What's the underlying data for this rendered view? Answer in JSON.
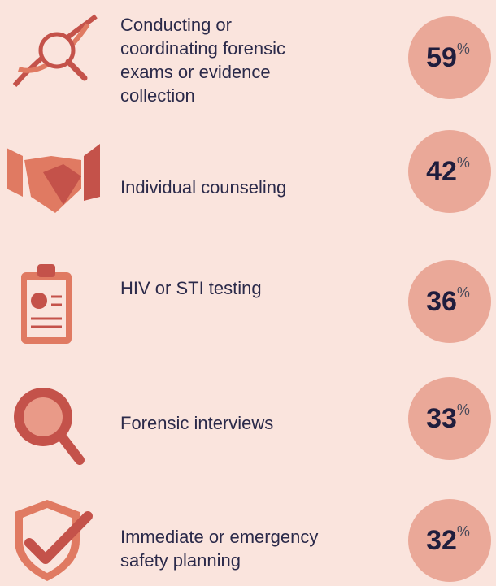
{
  "unit": "%",
  "items": [
    {
      "lines": [
        "Conducting or",
        "coordinating forensic",
        "exams or evidence",
        "collection"
      ],
      "value": 59
    },
    {
      "lines": [
        "Individual counseling"
      ],
      "value": 42
    },
    {
      "lines": [
        "HIV or STI testing"
      ],
      "value": 36
    },
    {
      "lines": [
        "Forensic interviews"
      ],
      "value": 33
    },
    {
      "lines": [
        "Immediate or emergency",
        "safety planning"
      ],
      "value": 32
    }
  ]
}
